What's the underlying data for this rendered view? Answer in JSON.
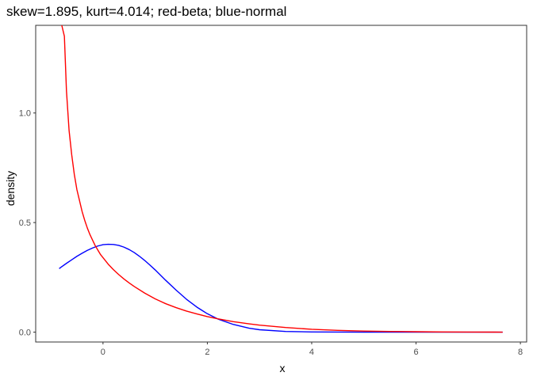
{
  "chart_data": {
    "type": "line",
    "title": "skew=1.895, kurt=4.014; red-beta; blue-normal",
    "xlabel": "x",
    "ylabel": "density",
    "xlim": [
      -1.29,
      8.12
    ],
    "ylim": [
      -0.045,
      1.4
    ],
    "x_ticks": [
      0,
      2,
      4,
      6,
      8
    ],
    "x_tick_labels": [
      "0",
      "2",
      "4",
      "6",
      "8"
    ],
    "y_ticks": [
      0,
      0.5,
      1.0
    ],
    "y_tick_labels": [
      "0.0",
      "0.5",
      "1.0"
    ],
    "grid": false,
    "legend": "none",
    "colors": {
      "beta": "#ff0000",
      "normal": "#0000ff",
      "panel_border": "#333333",
      "tick": "#333333"
    },
    "series": [
      {
        "color": "#ff0000",
        "x": [
          -0.84,
          -0.74,
          -0.7,
          -0.65,
          -0.6,
          -0.55,
          -0.5,
          -0.45,
          -0.4,
          -0.35,
          -0.3,
          -0.25,
          -0.2,
          -0.15,
          -0.1,
          -0.05,
          0.0,
          0.1,
          0.2,
          0.3,
          0.4,
          0.5,
          0.6,
          0.8,
          1.0,
          1.2,
          1.4,
          1.6,
          1.8,
          2.0,
          2.2,
          2.5,
          2.8,
          3.0,
          3.5,
          4.0,
          4.5,
          5.0,
          5.5,
          6.0,
          6.5,
          7.0,
          7.5,
          7.66
        ],
        "y": [
          1.45,
          1.35,
          1.1,
          0.92,
          0.81,
          0.72,
          0.65,
          0.6,
          0.55,
          0.51,
          0.475,
          0.445,
          0.42,
          0.395,
          0.375,
          0.355,
          0.34,
          0.31,
          0.285,
          0.263,
          0.243,
          0.225,
          0.208,
          0.178,
          0.152,
          0.13,
          0.112,
          0.096,
          0.083,
          0.071,
          0.061,
          0.048,
          0.038,
          0.032,
          0.021,
          0.013,
          0.008,
          0.005,
          0.003,
          0.002,
          0.001,
          0.0005,
          0.0002,
          0.0
        ]
      },
      {
        "color": "#0000ff",
        "x": [
          -0.84,
          -0.8,
          -0.7,
          -0.6,
          -0.5,
          -0.4,
          -0.3,
          -0.2,
          -0.1,
          0.0,
          0.1,
          0.2,
          0.3,
          0.4,
          0.5,
          0.6,
          0.7,
          0.8,
          0.9,
          1.0,
          1.2,
          1.4,
          1.6,
          1.8,
          2.0,
          2.2,
          2.5,
          2.8,
          3.0,
          3.5,
          4.0,
          5.0,
          6.0,
          7.0,
          7.66
        ],
        "y": [
          0.29,
          0.297,
          0.314,
          0.33,
          0.346,
          0.36,
          0.373,
          0.384,
          0.393,
          0.399,
          0.401,
          0.4,
          0.396,
          0.388,
          0.377,
          0.363,
          0.346,
          0.327,
          0.306,
          0.284,
          0.237,
          0.192,
          0.15,
          0.114,
          0.084,
          0.06,
          0.035,
          0.018,
          0.011,
          0.003,
          0.001,
          0.0,
          0.0,
          0.0,
          0.0
        ]
      }
    ]
  }
}
